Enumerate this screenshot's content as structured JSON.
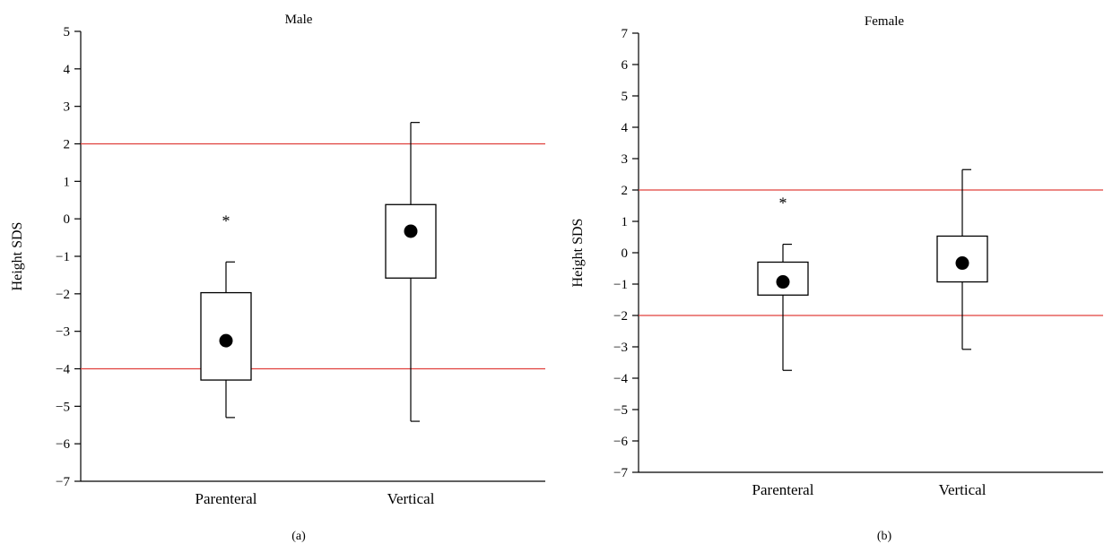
{
  "chart_data": [
    {
      "type": "box",
      "title": "Male",
      "panel_label": "(a)",
      "ylabel": "Height SDS",
      "xlabel": "",
      "ylim": [
        -7,
        5
      ],
      "yticks": [
        -7,
        -6,
        -5,
        -4,
        -3,
        -2,
        -1,
        0,
        1,
        2,
        3,
        4,
        5
      ],
      "categories": [
        "Parenteral",
        "Vertical"
      ],
      "boxes": [
        {
          "category": "Parenteral",
          "whisker_low": -5.3,
          "q1": -4.3,
          "q3": -1.97,
          "whisker_high": -1.15,
          "mean": -3.25,
          "annotation": "*"
        },
        {
          "category": "Vertical",
          "whisker_low": -5.4,
          "q1": -1.58,
          "q3": 0.38,
          "whisker_high": 2.57,
          "mean": -0.33,
          "annotation": ""
        }
      ],
      "reference_lines": [
        2,
        -4
      ],
      "reference_line_color": "#e0403c",
      "grid": false
    },
    {
      "type": "box",
      "title": "Female",
      "panel_label": "(b)",
      "ylabel": "Height SDS",
      "xlabel": "",
      "ylim": [
        -7,
        7
      ],
      "yticks": [
        -7,
        -6,
        -5,
        -4,
        -3,
        -2,
        -1,
        0,
        1,
        2,
        3,
        4,
        5,
        6,
        7
      ],
      "categories": [
        "Parenteral",
        "Vertical"
      ],
      "boxes": [
        {
          "category": "Parenteral",
          "whisker_low": -3.75,
          "q1": -1.35,
          "q3": -0.3,
          "whisker_high": 0.27,
          "mean": -0.93,
          "annotation": "*"
        },
        {
          "category": "Vertical",
          "whisker_low": -3.08,
          "q1": -0.93,
          "q3": 0.53,
          "whisker_high": 2.65,
          "mean": -0.33,
          "annotation": ""
        }
      ],
      "reference_lines": [
        2,
        -2
      ],
      "reference_line_color": "#e0403c",
      "grid": false
    }
  ]
}
